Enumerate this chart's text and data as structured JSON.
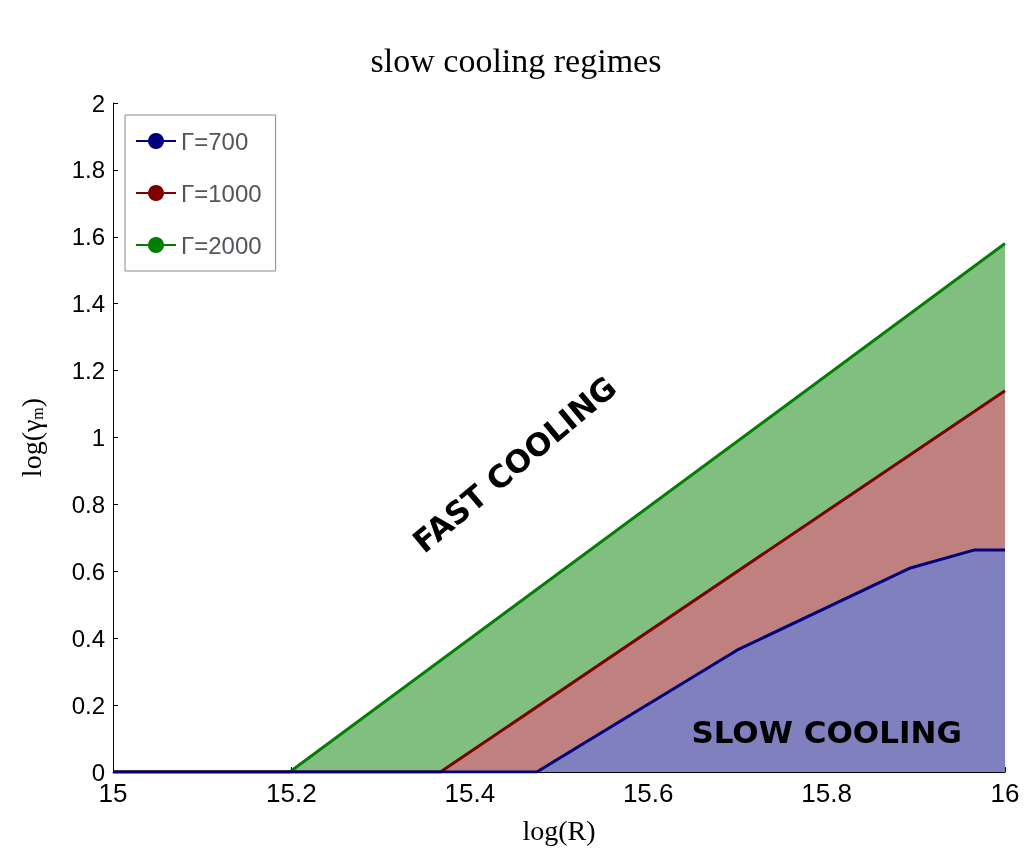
{
  "chart_data": {
    "type": "area",
    "title": "slow cooling regimes",
    "xlabel": "log(R)",
    "ylabel": "log(γ$_{m}$)",
    "annotations": [
      "FAST COOLING",
      "SLOW COOLING"
    ],
    "series": [
      {
        "name": "Γ=2000",
        "color": "#007f00",
        "x": [
          15,
          15.198,
          16
        ],
        "values": [
          0,
          0,
          1.58
        ]
      },
      {
        "name": "Γ=1000",
        "color": "#7f0000",
        "x": [
          15,
          15.367,
          16
        ],
        "values": [
          0,
          0,
          1.14
        ]
      },
      {
        "name": "Γ=700",
        "color": "#00007f",
        "x": [
          15,
          15.475,
          15.7,
          15.894,
          15.966,
          16
        ],
        "values": [
          0,
          0,
          0.365,
          0.61,
          0.664,
          0.664
        ]
      }
    ],
    "xlim": [
      15,
      16
    ],
    "xticks": [
      15,
      15.2,
      15.4,
      15.6,
      15.8,
      16
    ],
    "ylim": [
      0,
      2
    ],
    "yticks": [
      0,
      0.2,
      0.4,
      0.6,
      0.8,
      1,
      1.2,
      1.4,
      1.6,
      1.8,
      2
    ],
    "legend": "top left",
    "grid": false,
    "marker": "none",
    "line_style": "solid"
  }
}
